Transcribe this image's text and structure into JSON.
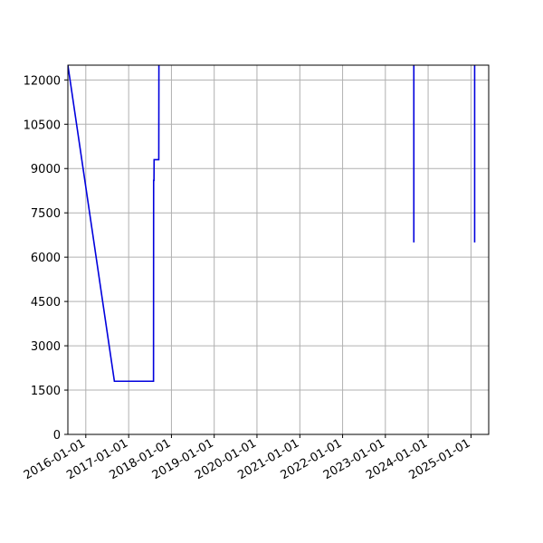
{
  "chart_data": {
    "type": "line",
    "title": "",
    "xlabel": "",
    "ylabel": "",
    "x_axis_type": "date",
    "xlim": [
      "2015-08-01",
      "2025-06-01"
    ],
    "ylim": [
      0,
      12500
    ],
    "grid": true,
    "x_ticks": [
      "2016-01-01",
      "2017-01-01",
      "2018-01-01",
      "2019-01-01",
      "2020-01-01",
      "2021-01-01",
      "2022-01-01",
      "2023-01-01",
      "2024-01-01",
      "2025-01-01"
    ],
    "y_ticks": [
      0,
      1500,
      3000,
      4500,
      6000,
      7500,
      9000,
      10500,
      12000
    ],
    "series": [
      {
        "color": "#0000dd",
        "segments": [
          [
            {
              "x": "2015-08-01",
              "y": 12500
            },
            {
              "x": "2016-09-01",
              "y": 1800
            },
            {
              "x": "2016-11-01",
              "y": 1800
            },
            {
              "x": "2017-05-01",
              "y": 1800
            },
            {
              "x": "2017-08-01",
              "y": 1800
            },
            {
              "x": "2017-08-02",
              "y": 8600
            },
            {
              "x": "2017-08-05",
              "y": 8600
            },
            {
              "x": "2017-08-06",
              "y": 9300
            },
            {
              "x": "2017-09-15",
              "y": 9300
            },
            {
              "x": "2017-09-16",
              "y": 12500
            }
          ],
          [
            {
              "x": "2023-09-01",
              "y": 12500
            },
            {
              "x": "2023-09-01",
              "y": 6500
            }
          ],
          [
            {
              "x": "2025-02-01",
              "y": 12500
            },
            {
              "x": "2025-02-01",
              "y": 6500
            }
          ]
        ]
      }
    ]
  }
}
